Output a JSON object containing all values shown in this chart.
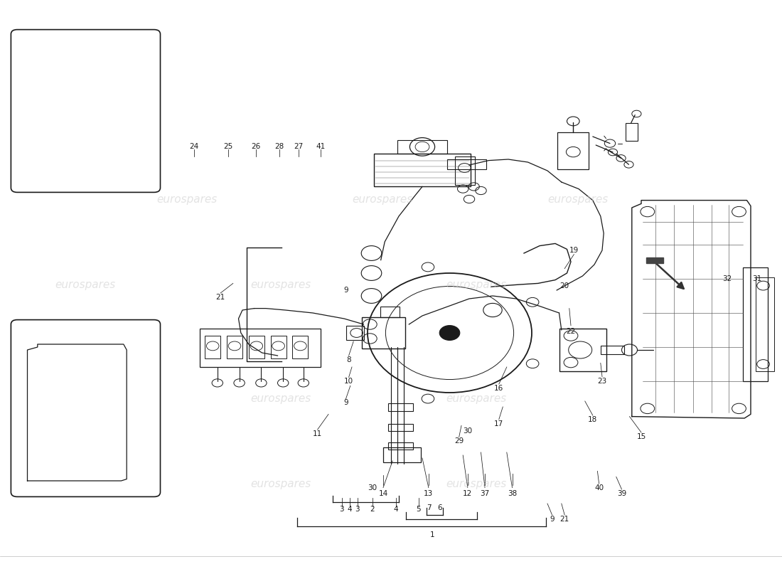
{
  "bg_color": "#ffffff",
  "line_color": "#1a1a1a",
  "watermark_color": "#cccccc",
  "watermark_text": "eurospares",
  "fig_width": 11.0,
  "fig_height": 8.0,
  "dpi": 100
}
